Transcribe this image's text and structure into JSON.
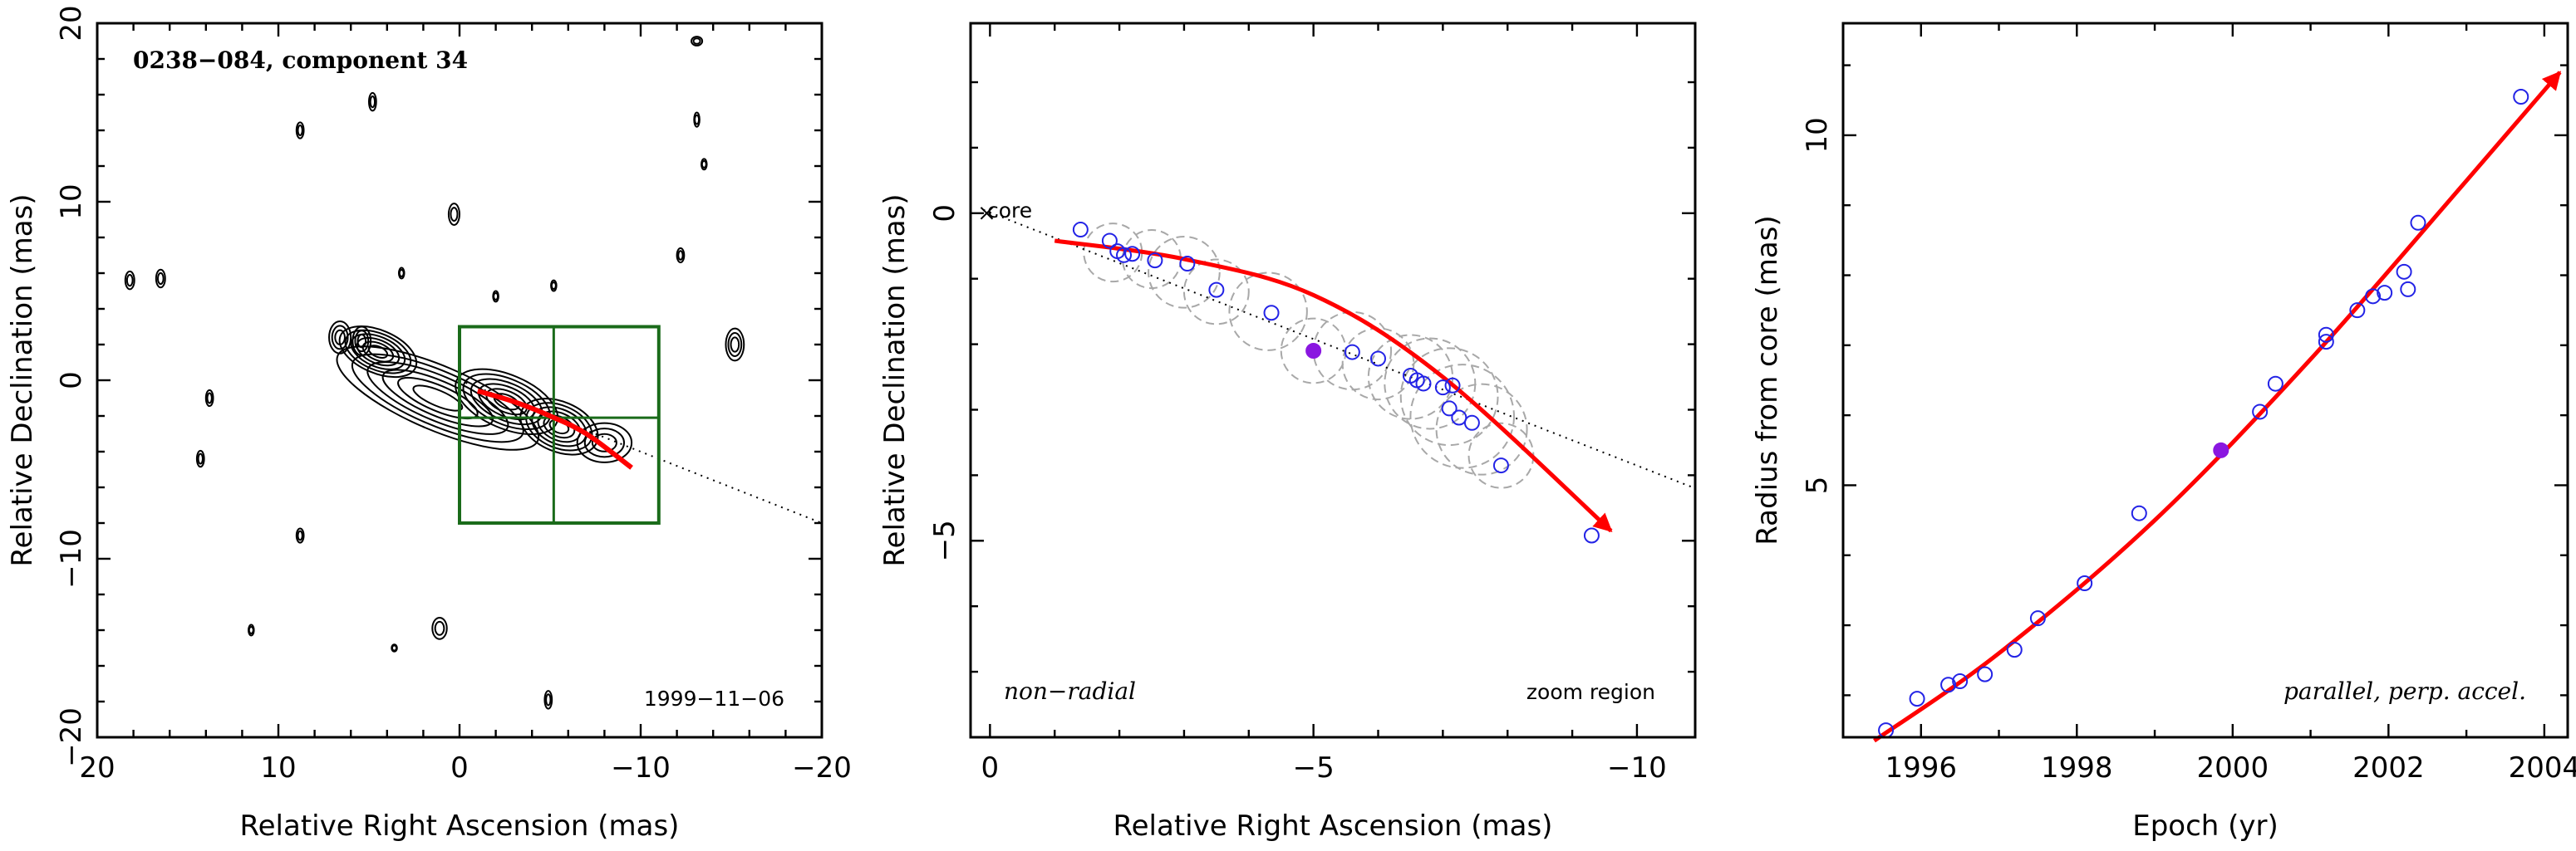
{
  "chart_data": [
    {
      "type": "contour",
      "title": "0238−084, component 34",
      "date_label": "1999−11−06",
      "xlabel": "Relative Right Ascension (mas)",
      "ylabel": "Relative Declination (mas)",
      "xlim": [
        20,
        -20
      ],
      "ylim": [
        -20,
        20
      ],
      "xticks": [
        20,
        10,
        0,
        -10,
        -20
      ],
      "xtick_labels": [
        "20",
        "10",
        "0",
        "−10",
        "−20"
      ],
      "yticks": [
        -20,
        -10,
        0,
        10,
        20
      ],
      "ytick_labels": [
        "−20",
        "−10",
        "0",
        "10",
        "20"
      ],
      "zoom_box": {
        "x": [
          0,
          -11
        ],
        "y": [
          -8,
          3
        ],
        "grid_x": [
          -5.2
        ],
        "grid_y": [
          -2.1
        ]
      },
      "jet_axis": {
        "from": [
          0,
          0
        ],
        "to": [
          -20,
          -8
        ]
      },
      "trajectory": [
        [
          -1,
          -0.6
        ],
        [
          -3,
          -1.2
        ],
        [
          -5,
          -2.0
        ],
        [
          -7,
          -3.0
        ],
        [
          -9.5,
          -4.9
        ]
      ],
      "blobs": [
        {
          "x": 1.2,
          "y": -1.0,
          "w": 12,
          "h": 3.6
        },
        {
          "x": 4.5,
          "y": 1.6,
          "w": 4.5,
          "h": 2.4
        },
        {
          "x": 6.6,
          "y": 2.4,
          "w": 1.2,
          "h": 1.8
        },
        {
          "x": 5.4,
          "y": 2.2,
          "w": 1.0,
          "h": 1.6
        },
        {
          "x": -2.6,
          "y": -1.2,
          "w": 6.0,
          "h": 3.0
        },
        {
          "x": -5.5,
          "y": -2.6,
          "w": 4.5,
          "h": 2.8
        },
        {
          "x": -8.0,
          "y": -3.5,
          "w": 3.0,
          "h": 2.2
        },
        {
          "x": -15.2,
          "y": 2.0,
          "w": 1.0,
          "h": 1.8
        },
        {
          "x": 0.3,
          "y": 9.3,
          "w": 0.6,
          "h": 1.2
        },
        {
          "x": 18.2,
          "y": 5.6,
          "w": 0.5,
          "h": 1.0
        },
        {
          "x": 16.5,
          "y": 5.7,
          "w": 0.5,
          "h": 1.0
        },
        {
          "x": 13.8,
          "y": -1.0,
          "w": 0.4,
          "h": 0.9
        },
        {
          "x": 14.3,
          "y": -4.4,
          "w": 0.4,
          "h": 0.9
        },
        {
          "x": 4.8,
          "y": 15.6,
          "w": 0.4,
          "h": 1.0
        },
        {
          "x": 8.8,
          "y": 14.0,
          "w": 0.4,
          "h": 0.9
        },
        {
          "x": 8.8,
          "y": -8.7,
          "w": 0.4,
          "h": 0.8
        },
        {
          "x": 1.1,
          "y": -13.9,
          "w": 0.8,
          "h": 1.2
        },
        {
          "x": -13.1,
          "y": 14.6,
          "w": 0.3,
          "h": 0.8
        },
        {
          "x": -13.5,
          "y": 12.1,
          "w": 0.3,
          "h": 0.6
        },
        {
          "x": -12.2,
          "y": 7.0,
          "w": 0.4,
          "h": 0.8
        },
        {
          "x": -5.2,
          "y": 5.3,
          "w": 0.3,
          "h": 0.6
        },
        {
          "x": -2.0,
          "y": 4.7,
          "w": 0.3,
          "h": 0.6
        },
        {
          "x": 3.2,
          "y": 6.0,
          "w": 0.3,
          "h": 0.6
        },
        {
          "x": -4.9,
          "y": -17.9,
          "w": 0.4,
          "h": 1.0
        },
        {
          "x": -13.1,
          "y": 19.0,
          "w": 0.6,
          "h": 0.5
        },
        {
          "x": 11.5,
          "y": -14.0,
          "w": 0.3,
          "h": 0.6
        },
        {
          "x": 3.6,
          "y": -15.0,
          "w": 0.3,
          "h": 0.4
        }
      ]
    },
    {
      "type": "scatter",
      "xlabel": "Relative Right Ascension (mas)",
      "ylabel": "Relative Declination (mas)",
      "xlim": [
        0.3,
        -10.9
      ],
      "ylim": [
        -8,
        2.9
      ],
      "xticks": [
        0,
        -5,
        -10
      ],
      "xtick_labels": [
        "0",
        "−5",
        "−10"
      ],
      "yticks": [
        -5,
        0
      ],
      "ytick_labels": [
        "−5",
        "0"
      ],
      "core_label": "core",
      "left_note": "non−radial",
      "right_note": "zoom region",
      "jet_axis": {
        "from": [
          0.1,
          0.05
        ],
        "to": [
          -10.9,
          -4.2
        ]
      },
      "points": [
        {
          "x": -1.4,
          "y": -0.25
        },
        {
          "x": -1.85,
          "y": -0.42
        },
        {
          "x": -1.97,
          "y": -0.58
        },
        {
          "x": -2.07,
          "y": -0.64
        },
        {
          "x": -2.2,
          "y": -0.62
        },
        {
          "x": -2.55,
          "y": -0.72
        },
        {
          "x": -3.05,
          "y": -0.77
        },
        {
          "x": -3.5,
          "y": -1.17
        },
        {
          "x": -4.35,
          "y": -1.52
        },
        {
          "x": -5.6,
          "y": -2.12
        },
        {
          "x": -6.0,
          "y": -2.22
        },
        {
          "x": -6.5,
          "y": -2.48
        },
        {
          "x": -6.6,
          "y": -2.55
        },
        {
          "x": -6.7,
          "y": -2.6
        },
        {
          "x": -7.0,
          "y": -2.66
        },
        {
          "x": -7.15,
          "y": -2.63
        },
        {
          "x": -7.1,
          "y": -2.98
        },
        {
          "x": -7.25,
          "y": -3.12
        },
        {
          "x": -7.45,
          "y": -3.2
        },
        {
          "x": -7.9,
          "y": -3.85
        },
        {
          "x": -9.3,
          "y": -4.92
        }
      ],
      "highlight": {
        "x": -5.0,
        "y": -2.1
      },
      "uncertainty_circles": [
        {
          "x": -1.9,
          "y": -0.6,
          "r": 0.45
        },
        {
          "x": -2.5,
          "y": -0.7,
          "r": 0.45
        },
        {
          "x": -3.0,
          "y": -0.9,
          "r": 0.55
        },
        {
          "x": -3.5,
          "y": -1.2,
          "r": 0.5
        },
        {
          "x": -4.3,
          "y": -1.5,
          "r": 0.6
        },
        {
          "x": -5.0,
          "y": -2.1,
          "r": 0.5
        },
        {
          "x": -5.6,
          "y": -2.1,
          "r": 0.6
        },
        {
          "x": -6.0,
          "y": -2.3,
          "r": 0.55
        },
        {
          "x": -6.5,
          "y": -2.5,
          "r": 0.65
        },
        {
          "x": -6.8,
          "y": -2.6,
          "r": 0.7
        },
        {
          "x": -7.1,
          "y": -2.8,
          "r": 0.75
        },
        {
          "x": -7.3,
          "y": -3.1,
          "r": 0.8
        },
        {
          "x": -7.6,
          "y": -3.3,
          "r": 0.7
        },
        {
          "x": -7.9,
          "y": -3.7,
          "r": 0.5
        }
      ],
      "trajectory": [
        [
          -1.0,
          -0.42
        ],
        [
          -3.0,
          -0.7
        ],
        [
          -5.0,
          -1.25
        ],
        [
          -7.0,
          -2.5
        ],
        [
          -9.6,
          -4.85
        ]
      ]
    },
    {
      "type": "scatter",
      "xlabel": "Epoch (yr)",
      "ylabel": "Radius from core (mas)",
      "xlim": [
        1995,
        2004.3
      ],
      "ylim": [
        1.4,
        11.6
      ],
      "xticks": [
        1996,
        1998,
        2000,
        2002,
        2004
      ],
      "xtick_labels": [
        "1996",
        "1998",
        "2000",
        "2002",
        "2004"
      ],
      "yticks": [
        5,
        10
      ],
      "ytick_labels": [
        "5",
        "10"
      ],
      "note": "parallel, perp. accel.",
      "points": [
        {
          "x": 1995.55,
          "y": 1.5
        },
        {
          "x": 1995.95,
          "y": 1.95
        },
        {
          "x": 1996.35,
          "y": 2.15
        },
        {
          "x": 1996.5,
          "y": 2.2
        },
        {
          "x": 1996.82,
          "y": 2.3
        },
        {
          "x": 1997.2,
          "y": 2.65
        },
        {
          "x": 1997.5,
          "y": 3.1
        },
        {
          "x": 1998.1,
          "y": 3.6
        },
        {
          "x": 1998.8,
          "y": 4.6
        },
        {
          "x": 2000.35,
          "y": 6.05
        },
        {
          "x": 2000.55,
          "y": 6.45
        },
        {
          "x": 2001.2,
          "y": 7.05
        },
        {
          "x": 2001.2,
          "y": 7.15
        },
        {
          "x": 2001.6,
          "y": 7.5
        },
        {
          "x": 2001.8,
          "y": 7.7
        },
        {
          "x": 2001.95,
          "y": 7.75
        },
        {
          "x": 2002.2,
          "y": 8.05
        },
        {
          "x": 2002.25,
          "y": 7.8
        },
        {
          "x": 2002.38,
          "y": 8.75
        },
        {
          "x": 2003.7,
          "y": 10.55
        }
      ],
      "highlight": {
        "x": 1999.85,
        "y": 5.5
      },
      "fit_curve": [
        [
          1995.4,
          1.35
        ],
        [
          1997.0,
          2.6
        ],
        [
          1999.0,
          4.5
        ],
        [
          2001.0,
          6.8
        ],
        [
          2003.0,
          9.35
        ],
        [
          2004.2,
          10.9
        ]
      ]
    }
  ]
}
